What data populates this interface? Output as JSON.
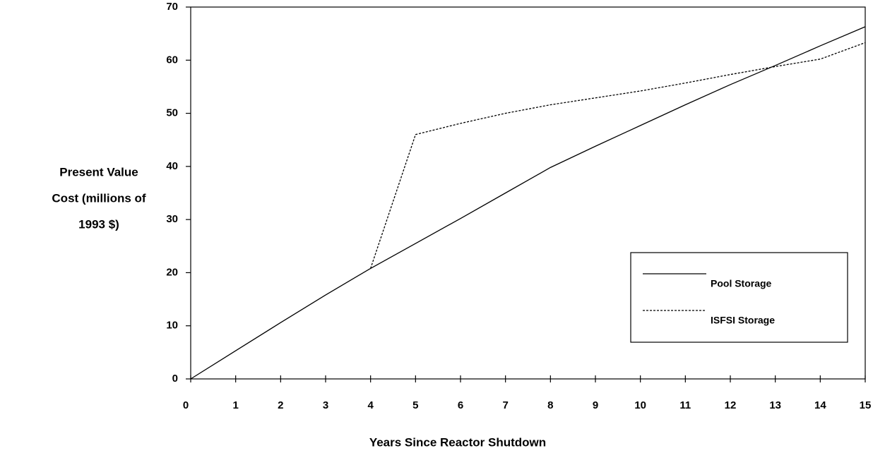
{
  "chart_data": {
    "type": "line",
    "x_label": "Years Since Reactor Shutdown",
    "y_label": [
      "Present Value",
      "Cost (millions of",
      "1993 $)"
    ],
    "x": [
      0,
      1,
      2,
      3,
      4,
      5,
      6,
      7,
      8,
      9,
      10,
      11,
      12,
      13,
      14,
      15
    ],
    "series": [
      {
        "name": "Pool Storage",
        "color": "#000000",
        "style": "solid",
        "values": [
          0,
          5.3,
          10.6,
          15.8,
          20.8,
          25.5,
          30.2,
          35,
          39.8,
          43.8,
          47.7,
          51.6,
          55.4,
          59,
          62.7,
          66.3
        ]
      },
      {
        "name": "ISFSI Storage",
        "color": "#000000",
        "style": "dotted",
        "values": [
          null,
          null,
          null,
          null,
          20.8,
          46,
          48.1,
          50,
          51.6,
          52.9,
          54.2,
          55.7,
          57.3,
          58.8,
          60.2,
          63.3
        ]
      }
    ],
    "xlim": [
      0,
      15
    ],
    "xticks": [
      0,
      1,
      2,
      3,
      4,
      5,
      6,
      7,
      8,
      9,
      10,
      11,
      12,
      13,
      14,
      15
    ],
    "ylim": [
      0,
      70
    ],
    "yticks": [
      0,
      10,
      20,
      30,
      40,
      50,
      60,
      70
    ],
    "grid": false,
    "legend": "lower right"
  }
}
